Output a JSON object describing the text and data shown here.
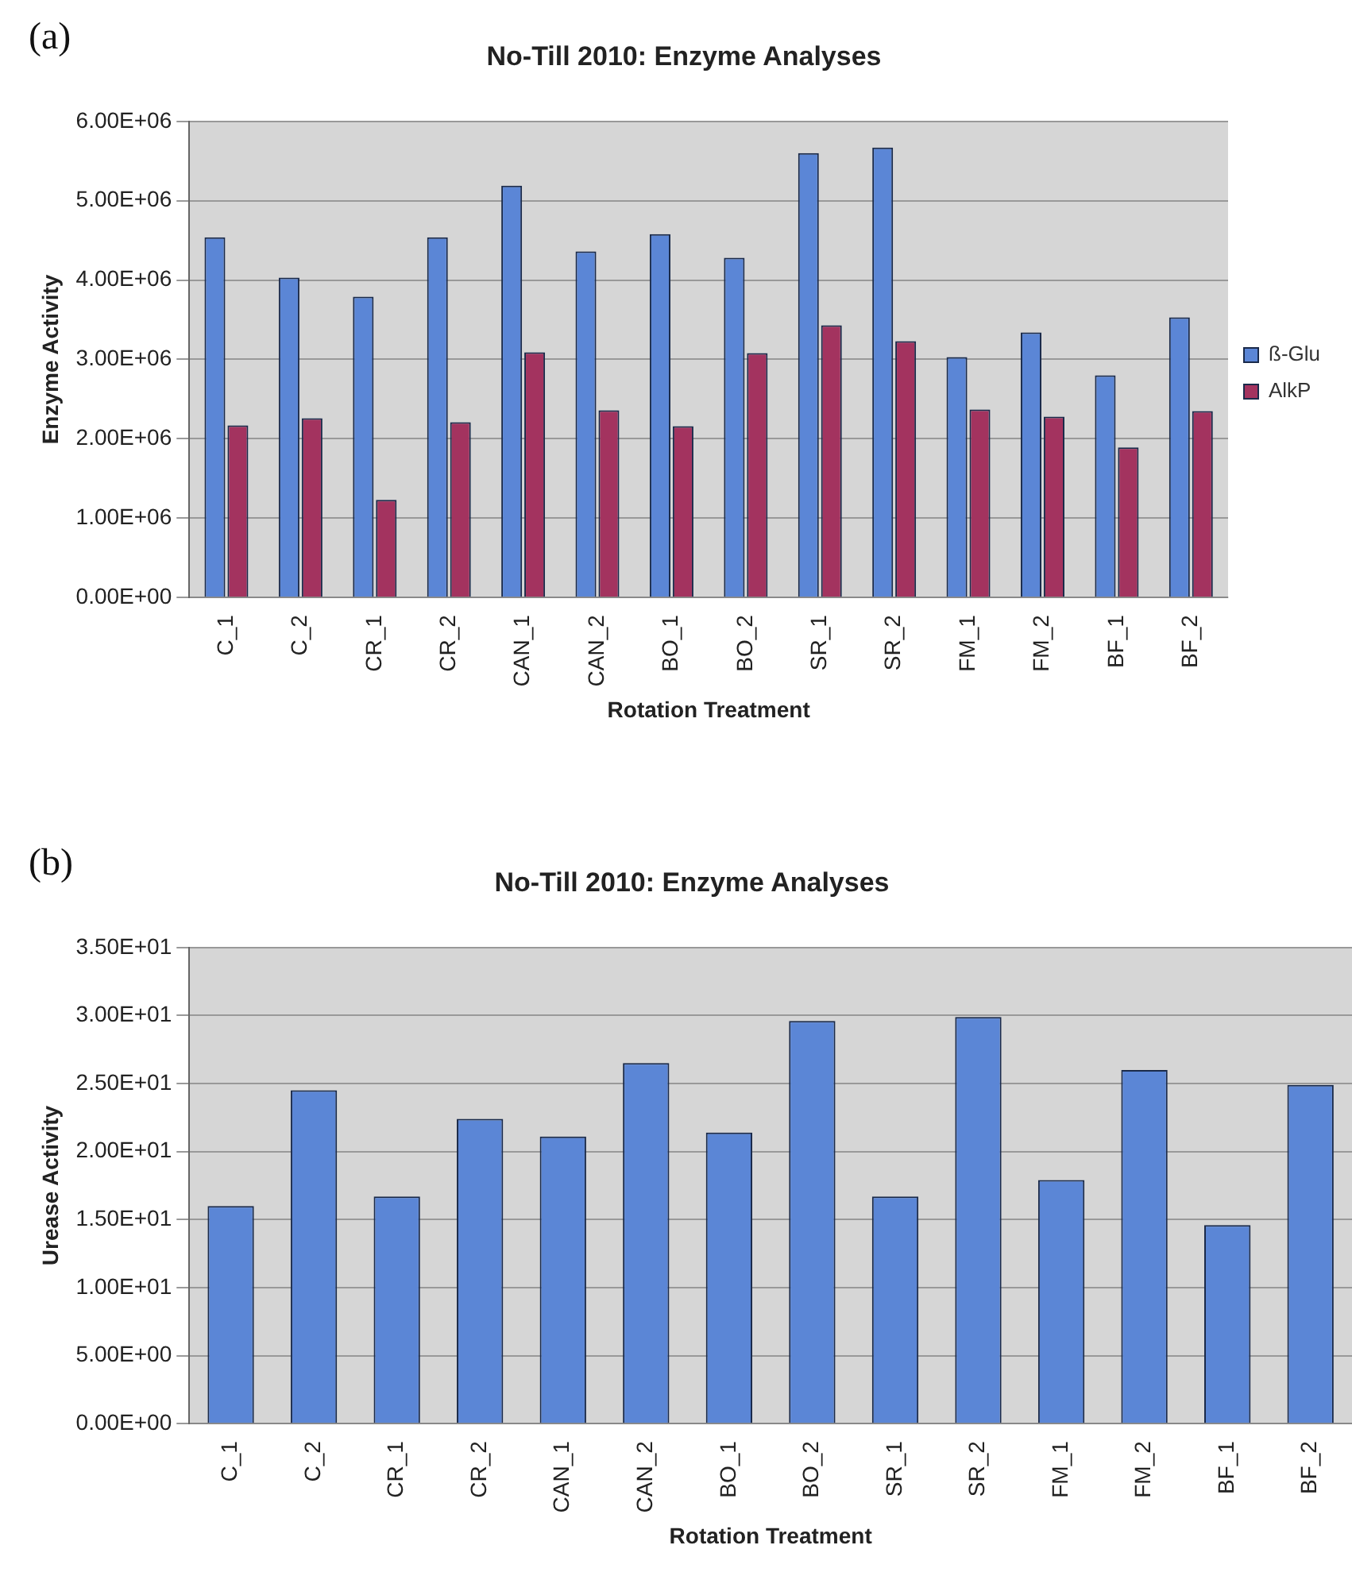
{
  "chart_data": [
    {
      "type": "bar",
      "title": "No-Till 2010: Enzyme Analyses",
      "xlabel": "Rotation Treatment",
      "ylabel": "Enzyme Activity",
      "annotations": [
        "(a)"
      ],
      "categories": [
        "C_1",
        "C_2",
        "CR_1",
        "CR_2",
        "CAN_1",
        "CAN_2",
        "BO_1",
        "BO_2",
        "SR_1",
        "SR_2",
        "FM_1",
        "FM_2",
        "BF_1",
        "BF_2"
      ],
      "series": [
        {
          "name": "ß-Glu",
          "color": "#5b86d6",
          "values": [
            4540000,
            4030000,
            3790000,
            4540000,
            5190000,
            4360000,
            4580000,
            4280000,
            5600000,
            5670000,
            3030000,
            3340000,
            2800000,
            3530000
          ]
        },
        {
          "name": "AlkP",
          "color": "#a3335f",
          "values": [
            2170000,
            2260000,
            1230000,
            2210000,
            3090000,
            2360000,
            2160000,
            3080000,
            3430000,
            3230000,
            2370000,
            2280000,
            1890000,
            2350000
          ]
        }
      ],
      "ylim": [
        0,
        6000000
      ],
      "yticks": [
        {
          "value": 0,
          "label": "0.00E+00"
        },
        {
          "value": 1000000,
          "label": "1.00E+06"
        },
        {
          "value": 2000000,
          "label": "2.00E+06"
        },
        {
          "value": 3000000,
          "label": "3.00E+06"
        },
        {
          "value": 4000000,
          "label": "4.00E+06"
        },
        {
          "value": 5000000,
          "label": "5.00E+06"
        },
        {
          "value": 6000000,
          "label": "6.00E+06"
        }
      ],
      "grid": "y",
      "legend": "right"
    },
    {
      "type": "bar",
      "title": "No-Till 2010: Enzyme Analyses",
      "xlabel": "Rotation Treatment",
      "ylabel": "Urease Activity",
      "annotations": [
        "(b)"
      ],
      "categories": [
        "C_1",
        "C_2",
        "CR_1",
        "CR_2",
        "CAN_1",
        "CAN_2",
        "BO_1",
        "BO_2",
        "SR_1",
        "SR_2",
        "FM_1",
        "FM_2",
        "BF_1",
        "BF_2"
      ],
      "series": [
        {
          "color": "#5b86d6",
          "values": [
            16.0,
            24.5,
            16.7,
            22.4,
            21.1,
            26.5,
            21.4,
            29.6,
            16.7,
            29.9,
            17.9,
            26.0,
            14.6,
            24.9
          ]
        }
      ],
      "ylim": [
        0,
        35
      ],
      "yticks": [
        {
          "value": 0,
          "label": "0.00E+00"
        },
        {
          "value": 5,
          "label": "5.00E+00"
        },
        {
          "value": 10,
          "label": "1.00E+01"
        },
        {
          "value": 15,
          "label": "1.50E+01"
        },
        {
          "value": 20,
          "label": "2.00E+01"
        },
        {
          "value": 25,
          "label": "2.50E+01"
        },
        {
          "value": 30,
          "label": "3.00E+01"
        },
        {
          "value": 35,
          "label": "3.50E+01"
        }
      ],
      "grid": "y",
      "legend": false
    }
  ]
}
